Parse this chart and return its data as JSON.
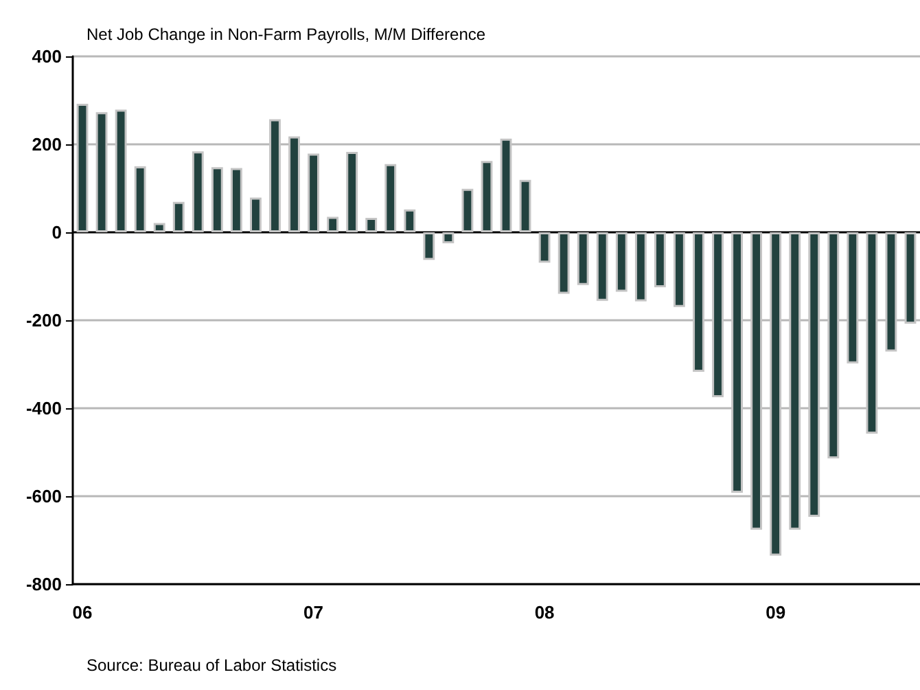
{
  "chart_data": {
    "type": "bar",
    "title": "Net Job Change in Non-Farm Payrolls, M/M Difference",
    "categories": [
      "06",
      null,
      null,
      null,
      null,
      null,
      null,
      null,
      null,
      null,
      null,
      null,
      "07",
      null,
      null,
      null,
      null,
      null,
      null,
      null,
      null,
      null,
      null,
      null,
      "08",
      null,
      null,
      null,
      null,
      null,
      null,
      null,
      null,
      null,
      null,
      null,
      "09",
      null,
      null,
      null,
      null,
      null,
      null,
      null
    ],
    "values": [
      292,
      273,
      279,
      150,
      21,
      69,
      184,
      148,
      146,
      79,
      257,
      218,
      179,
      35,
      183,
      33,
      155,
      52,
      -63,
      -25,
      99,
      162,
      213,
      119,
      -69,
      -140,
      -120,
      -156,
      -135,
      -157,
      -125,
      -170,
      -317,
      -375,
      -592,
      -676,
      -735,
      -676,
      -647,
      -514,
      -298,
      -458,
      -271,
      -208
    ],
    "color": "#22423f",
    "ylim": [
      -800,
      400
    ],
    "yticks": [
      -800,
      -600,
      -400,
      -200,
      0,
      200,
      400
    ],
    "grid": "y",
    "annotations": [
      "Source: Bureau of Labor Statistics"
    ]
  }
}
